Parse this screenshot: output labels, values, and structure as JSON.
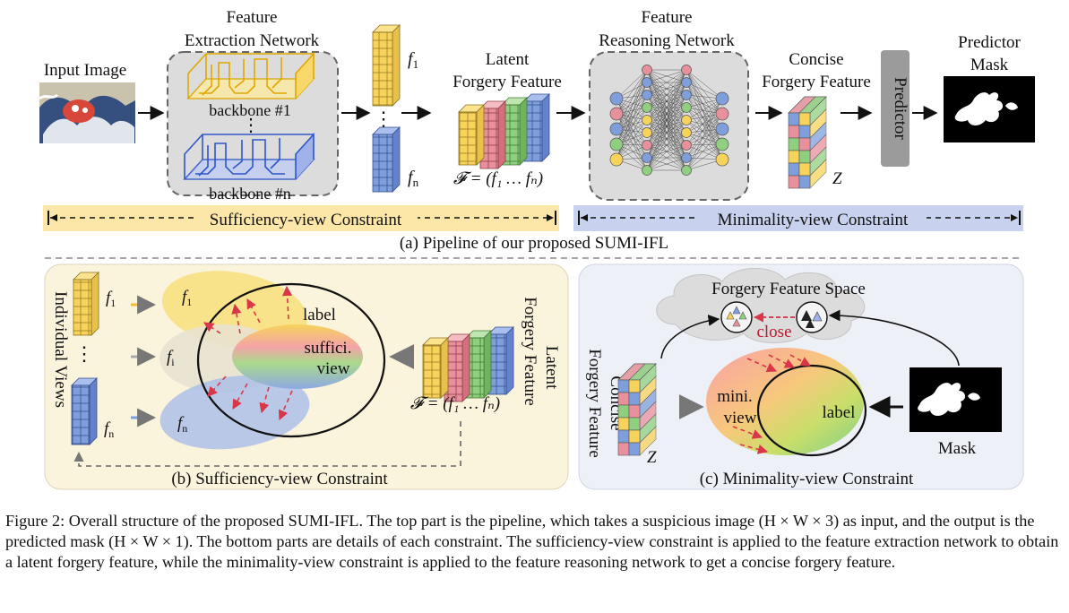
{
  "pipeline": {
    "input_image": "Input Image",
    "fen_title_1": "Feature",
    "fen_title_2": "Extraction Network",
    "backbone_1": "backbone #1",
    "backbone_n": "backbone #n",
    "vdots": ":",
    "f1": "f",
    "f1_sub": "1",
    "fn": "f",
    "fn_sub": "n",
    "latent_1": "Latent",
    "latent_2": "Forgery Feature",
    "latent_formula": "𝓕 = (f₁ … fₙ)",
    "frn_title_1": "Feature",
    "frn_title_2": "Reasoning Network",
    "concise_1": "Concise",
    "concise_2": "Forgery Feature",
    "z_label": "Z",
    "predictor": "Predictor",
    "mask_title_1": "Predictor",
    "mask_title_2": "Mask",
    "sufficiency_bar": "Sufficiency-view Constraint",
    "minimality_bar": "Minimality-view Constraint",
    "caption_a": "(a) Pipeline of our proposed SUMI-IFL"
  },
  "panel_b": {
    "individual_views": "Individual Views",
    "f1": "f",
    "f1_sub": "1",
    "fi": "f",
    "fi_sub": "i",
    "fn": "f",
    "fn_sub": "n",
    "label": "label",
    "suffici": "suffici.",
    "view": "view",
    "latent_1": "Latent",
    "latent_2": "Forgery Feature",
    "formula": "𝓕 = (f₁ … fₙ)",
    "caption": "(b) Sufficiency-view Constraint"
  },
  "panel_c": {
    "space_title": "Forgery Feature Space",
    "close": "close",
    "concise_1": "Concise",
    "concise_2": "Forgery Feature",
    "mini": "mini.",
    "view": "view",
    "label": "label",
    "mask": "Mask",
    "z_label": "Z",
    "caption": "(c) Minimality-view Constraint"
  },
  "figure_caption": "Figure 2: Overall structure of the proposed SUMI-IFL. The top part is the pipeline, which takes a suspicious image (H × W × 3) as input, and the output is the predicted mask (H × W × 1). The bottom parts are details of each constraint. The sufficiency-view constraint is applied to the feature extraction network to obtain a latent forgery feature, while the minimality-view constraint is applied to the feature reasoning network to get a concise forgery feature.",
  "colors": {
    "yellow": "#f7d35c",
    "red": "#e8919c",
    "green": "#8fcf7f",
    "blue": "#7f9fdc",
    "panel_b_bg": "#fbf4dd",
    "panel_c_bg": "#eef0f8",
    "suff_bar": "#fce7a8",
    "mini_bar": "#c8d2ee"
  }
}
